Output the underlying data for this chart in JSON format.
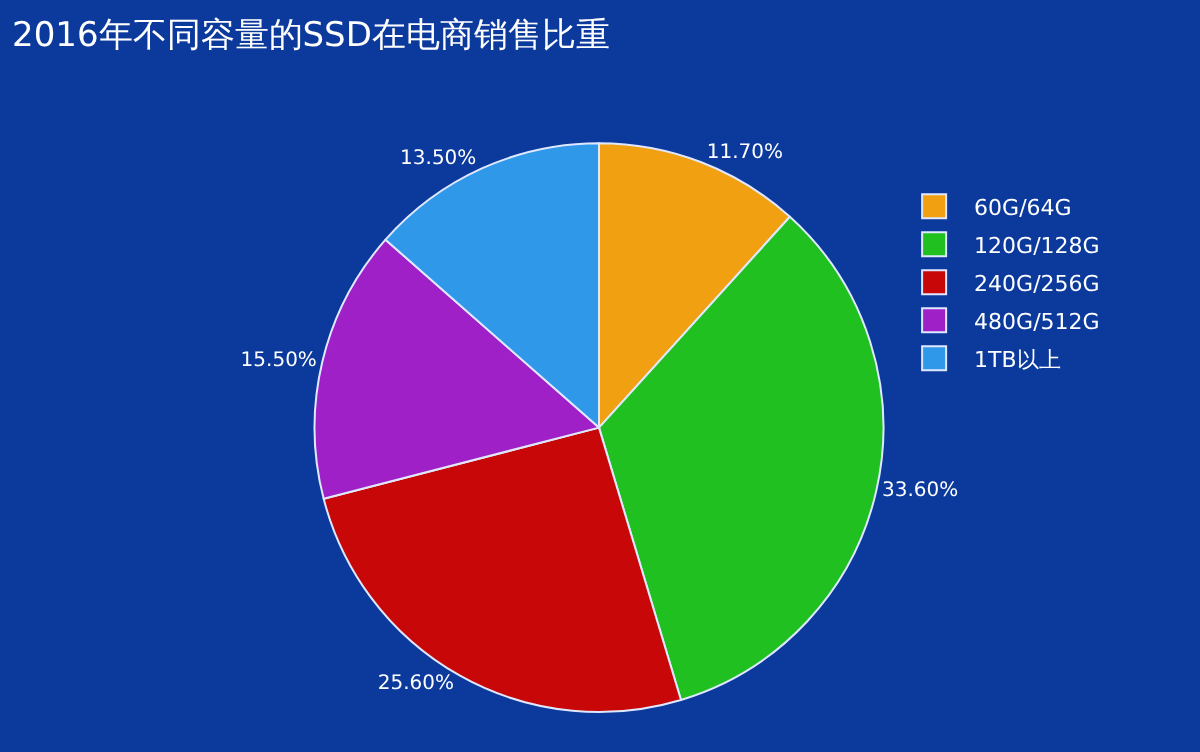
{
  "chart_data": {
    "type": "pie",
    "title": "2016年不同容量的SSD在电商销售比重",
    "categories": [
      "60G/64G",
      "120G/128G",
      "240G/256G",
      "480G/512G",
      "1TB以上"
    ],
    "values": [
      11.7,
      33.6,
      25.6,
      15.5,
      13.5
    ],
    "value_labels": [
      "11.70%",
      "33.60%",
      "25.60%",
      "15.50%",
      "13.50%"
    ],
    "colors": [
      "#f0a010",
      "#20c020",
      "#c80808",
      "#a020c8",
      "#3098e8"
    ],
    "legend": "right"
  }
}
